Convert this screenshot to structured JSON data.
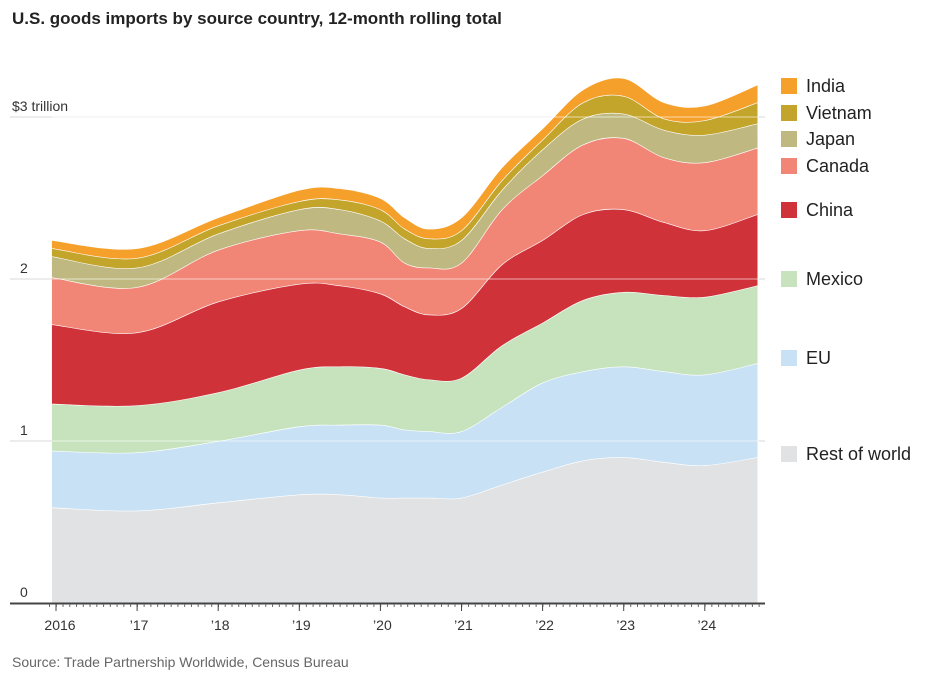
{
  "chart_data": {
    "type": "area",
    "stacked": true,
    "title": "U.S. goods imports by source country, 12-month rolling total",
    "source": "Source: Trade Partnership Worldwide, Census Bureau",
    "ylabel": "$ trillion",
    "ylim": [
      0,
      3.3
    ],
    "xlim": [
      2015.9,
      2024.75
    ],
    "y_ticks": [
      {
        "v": 0,
        "label": "0"
      },
      {
        "v": 1,
        "label": "1"
      },
      {
        "v": 2,
        "label": "2"
      },
      {
        "v": 3,
        "label": "$3 trillion"
      }
    ],
    "x_ticks": [
      {
        "v": 2016,
        "label": "2016"
      },
      {
        "v": 2017,
        "label": "’17"
      },
      {
        "v": 2018,
        "label": "’18"
      },
      {
        "v": 2019,
        "label": "’19"
      },
      {
        "v": 2020,
        "label": "’20"
      },
      {
        "v": 2021,
        "label": "’21"
      },
      {
        "v": 2022,
        "label": "’22"
      },
      {
        "v": 2023,
        "label": "’23"
      },
      {
        "v": 2024,
        "label": "’24"
      }
    ],
    "x": [
      2015.95,
      2017,
      2018,
      2019,
      2019.5,
      2020,
      2020.3,
      2020.6,
      2021,
      2021.5,
      2022,
      2022.5,
      2023,
      2023.5,
      2024,
      2024.65
    ],
    "series": [
      {
        "name": "Rest of world",
        "color": "#e1e2e4",
        "values": [
          0.59,
          0.57,
          0.62,
          0.67,
          0.67,
          0.65,
          0.65,
          0.65,
          0.65,
          0.73,
          0.81,
          0.88,
          0.9,
          0.87,
          0.85,
          0.9
        ]
      },
      {
        "name": "EU",
        "color": "#c8e1f5",
        "values": [
          0.35,
          0.36,
          0.38,
          0.42,
          0.43,
          0.45,
          0.42,
          0.41,
          0.41,
          0.48,
          0.55,
          0.55,
          0.56,
          0.56,
          0.56,
          0.58
        ]
      },
      {
        "name": "Mexico",
        "color": "#c6e3bd",
        "values": [
          0.29,
          0.29,
          0.3,
          0.35,
          0.36,
          0.35,
          0.34,
          0.32,
          0.33,
          0.38,
          0.37,
          0.44,
          0.46,
          0.47,
          0.48,
          0.48
        ]
      },
      {
        "name": "China",
        "color": "#d0323a",
        "values": [
          0.49,
          0.45,
          0.56,
          0.53,
          0.5,
          0.46,
          0.42,
          0.4,
          0.43,
          0.5,
          0.51,
          0.53,
          0.51,
          0.45,
          0.41,
          0.44
        ]
      },
      {
        "name": "Canada",
        "color": "#f28676",
        "values": [
          0.29,
          0.28,
          0.32,
          0.33,
          0.32,
          0.32,
          0.27,
          0.29,
          0.28,
          0.34,
          0.4,
          0.43,
          0.44,
          0.4,
          0.42,
          0.41
        ]
      },
      {
        "name": "Japan",
        "color": "#bfb880",
        "values": [
          0.13,
          0.12,
          0.1,
          0.13,
          0.15,
          0.13,
          0.15,
          0.12,
          0.14,
          0.12,
          0.16,
          0.16,
          0.15,
          0.17,
          0.17,
          0.15
        ]
      },
      {
        "name": "Vietnam",
        "color": "#c4a52b",
        "values": [
          0.05,
          0.06,
          0.05,
          0.05,
          0.06,
          0.07,
          0.06,
          0.06,
          0.06,
          0.06,
          0.06,
          0.1,
          0.11,
          0.07,
          0.09,
          0.13
        ]
      },
      {
        "name": "India",
        "color": "#f5a02a",
        "values": [
          0.05,
          0.06,
          0.05,
          0.07,
          0.07,
          0.07,
          0.07,
          0.06,
          0.08,
          0.08,
          0.07,
          0.08,
          0.11,
          0.1,
          0.09,
          0.11
        ]
      }
    ],
    "legend": "right"
  }
}
